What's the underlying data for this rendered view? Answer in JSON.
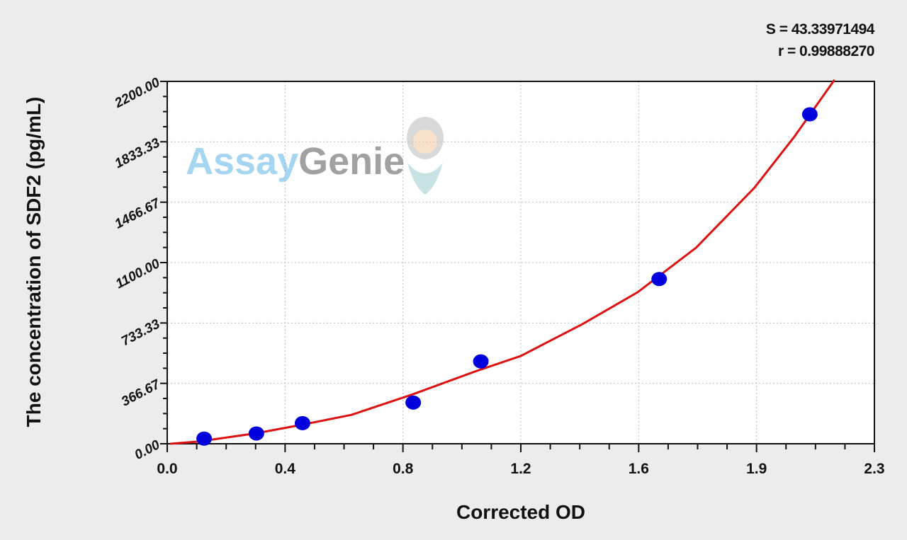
{
  "stats": {
    "s_text": "S = 43.33971494",
    "r_text": "r = 0.99888270"
  },
  "watermark": {
    "text_part1": "Assay",
    "text_part2": "Genie"
  },
  "chart_data": {
    "type": "scatter",
    "title": "",
    "xlabel": "Corrected OD",
    "ylabel": "The concentration of SDF2 (pg/mL)",
    "xlim": [
      0,
      2.3
    ],
    "ylim": [
      0,
      2200
    ],
    "x_tick_labels": [
      "0.0",
      "0.4",
      "0.8",
      "1.2",
      "1.6",
      "1.9",
      "2.3"
    ],
    "y_tick_labels": [
      "0.00",
      "366.67",
      "733.33",
      "1100.00",
      "1466.67",
      "1833.33",
      "2200.00"
    ],
    "grid": true,
    "points": {
      "x": [
        0.12,
        0.29,
        0.44,
        0.8,
        1.02,
        1.6,
        2.09
      ],
      "y": [
        31.25,
        62.5,
        125,
        250,
        500,
        1000,
        2000
      ],
      "color": "#0000dd"
    },
    "fit_curve": {
      "color": "#dd1111",
      "x": [
        0.01,
        0.1,
        0.29,
        0.44,
        0.6,
        0.8,
        1.0,
        1.15,
        1.35,
        1.53,
        1.72,
        1.91,
        2.04,
        2.17
      ],
      "y": [
        0,
        13,
        64,
        116,
        176,
        301,
        438,
        533,
        726,
        920,
        1190,
        1555,
        1865,
        2209
      ]
    }
  }
}
